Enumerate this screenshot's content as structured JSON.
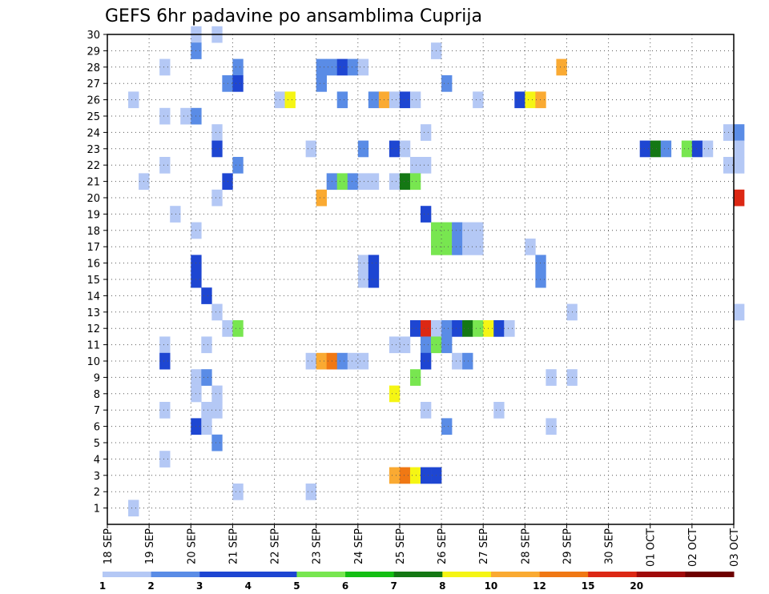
{
  "chart_data": {
    "type": "heatmap",
    "title": "GEFS 6hr padavine po ansamblima Cuprija",
    "x_tick_labels": [
      "18 SEP",
      "19 SEP",
      "20 SEP",
      "21 SEP",
      "22 SEP",
      "23 SEP",
      "24 SEP",
      "25 SEP",
      "26 SEP",
      "27 SEP",
      "28 SEP",
      "29 SEP",
      "30 SEP",
      "01 OCT",
      "02 OCT",
      "03 OCT"
    ],
    "x_range": [
      "18 SEP 00Z",
      "03 OCT 00Z"
    ],
    "x_step": "6hr",
    "y_tick_labels": [
      "1",
      "2",
      "3",
      "4",
      "5",
      "6",
      "7",
      "8",
      "9",
      "10",
      "11",
      "12",
      "13",
      "14",
      "15",
      "16",
      "17",
      "18",
      "19",
      "20",
      "21",
      "22",
      "23",
      "24",
      "25",
      "26",
      "27",
      "28",
      "29",
      "30"
    ],
    "y_range": [
      1,
      30
    ],
    "grid": true,
    "colorbar": {
      "labels": [
        "1",
        "2",
        "3",
        "4",
        "5",
        "6",
        "7",
        "8",
        "10",
        "12",
        "15",
        "20"
      ],
      "colors": [
        "#b4c8f5",
        "#5a8ce6",
        "#1e46d2",
        "#1e46d2",
        "#78e650",
        "#14be14",
        "#147814",
        "#f5f514",
        "#faaa32",
        "#f07814",
        "#dc2814",
        "#a00a0a",
        "#6e0000"
      ]
    },
    "cells": [
      {
        "member": 30,
        "t": "20 SEP 00Z",
        "v": 1.5
      },
      {
        "member": 30,
        "t": "20 SEP 12Z",
        "v": 1.5
      },
      {
        "member": 29,
        "t": "20 SEP 00Z",
        "v": 2.5
      },
      {
        "member": 29,
        "t": "25 SEP 18Z",
        "v": 1.5
      },
      {
        "member": 28,
        "t": "19 SEP 06Z",
        "v": 1.5
      },
      {
        "member": 28,
        "t": "21 SEP 00Z",
        "v": 2.5
      },
      {
        "member": 28,
        "t": "23 SEP 00Z",
        "v": 2.5
      },
      {
        "member": 28,
        "t": "23 SEP 06Z",
        "v": 2.5
      },
      {
        "member": 28,
        "t": "23 SEP 12Z",
        "v": 3.5
      },
      {
        "member": 28,
        "t": "23 SEP 18Z",
        "v": 2.5
      },
      {
        "member": 28,
        "t": "24 SEP 00Z",
        "v": 1.5
      },
      {
        "member": 28,
        "t": "28 SEP 18Z",
        "v": 11
      },
      {
        "member": 27,
        "t": "20 SEP 18Z",
        "v": 2.5
      },
      {
        "member": 27,
        "t": "21 SEP 00Z",
        "v": 3.5
      },
      {
        "member": 27,
        "t": "23 SEP 00Z",
        "v": 2.5
      },
      {
        "member": 27,
        "t": "26 SEP 00Z",
        "v": 2.5
      },
      {
        "member": 26,
        "t": "18 SEP 12Z",
        "v": 1.5
      },
      {
        "member": 26,
        "t": "22 SEP 00Z",
        "v": 1.5
      },
      {
        "member": 26,
        "t": "22 SEP 06Z",
        "v": 9
      },
      {
        "member": 26,
        "t": "23 SEP 12Z",
        "v": 2.5
      },
      {
        "member": 26,
        "t": "24 SEP 06Z",
        "v": 2.5
      },
      {
        "member": 26,
        "t": "24 SEP 12Z",
        "v": 11
      },
      {
        "member": 26,
        "t": "24 SEP 18Z",
        "v": 1.5
      },
      {
        "member": 26,
        "t": "25 SEP 00Z",
        "v": 4.5
      },
      {
        "member": 26,
        "t": "25 SEP 06Z",
        "v": 1.5
      },
      {
        "member": 26,
        "t": "26 SEP 18Z",
        "v": 1.5
      },
      {
        "member": 26,
        "t": "27 SEP 18Z",
        "v": 4.5
      },
      {
        "member": 26,
        "t": "28 SEP 00Z",
        "v": 9
      },
      {
        "member": 26,
        "t": "28 SEP 06Z",
        "v": 11
      },
      {
        "member": 25,
        "t": "19 SEP 06Z",
        "v": 1.5
      },
      {
        "member": 25,
        "t": "19 SEP 18Z",
        "v": 1.5
      },
      {
        "member": 25,
        "t": "20 SEP 00Z",
        "v": 2.5
      },
      {
        "member": 24,
        "t": "20 SEP 12Z",
        "v": 1.5
      },
      {
        "member": 24,
        "t": "25 SEP 12Z",
        "v": 1.5
      },
      {
        "member": 24,
        "t": "02 OCT 18Z",
        "v": 1.5
      },
      {
        "member": 24,
        "t": "03 OCT 00Z",
        "v": 2.5
      },
      {
        "member": 23,
        "t": "20 SEP 12Z",
        "v": 3.5
      },
      {
        "member": 23,
        "t": "22 SEP 18Z",
        "v": 1.5
      },
      {
        "member": 23,
        "t": "24 SEP 00Z",
        "v": 2.5
      },
      {
        "member": 23,
        "t": "24 SEP 18Z",
        "v": 4.5
      },
      {
        "member": 23,
        "t": "25 SEP 00Z",
        "v": 1.5
      },
      {
        "member": 23,
        "t": "30 SEP 18Z",
        "v": 3.5
      },
      {
        "member": 23,
        "t": "01 OCT 00Z",
        "v": 7.5
      },
      {
        "member": 23,
        "t": "01 OCT 06Z",
        "v": 2.5
      },
      {
        "member": 23,
        "t": "01 OCT 18Z",
        "v": 5.5
      },
      {
        "member": 23,
        "t": "02 OCT 00Z",
        "v": 3.5
      },
      {
        "member": 23,
        "t": "02 OCT 06Z",
        "v": 1.5
      },
      {
        "member": 23,
        "t": "03 OCT 00Z",
        "v": 1.5
      },
      {
        "member": 22,
        "t": "19 SEP 06Z",
        "v": 1.5
      },
      {
        "member": 22,
        "t": "21 SEP 00Z",
        "v": 2.5
      },
      {
        "member": 22,
        "t": "25 SEP 06Z",
        "v": 1.5
      },
      {
        "member": 22,
        "t": "25 SEP 12Z",
        "v": 1.5
      },
      {
        "member": 22,
        "t": "02 OCT 18Z",
        "v": 1.5
      },
      {
        "member": 22,
        "t": "03 OCT 00Z",
        "v": 1.5
      },
      {
        "member": 21,
        "t": "18 SEP 18Z",
        "v": 1.5
      },
      {
        "member": 21,
        "t": "20 SEP 18Z",
        "v": 3.5
      },
      {
        "member": 21,
        "t": "23 SEP 06Z",
        "v": 2.5
      },
      {
        "member": 21,
        "t": "23 SEP 12Z",
        "v": 5.5
      },
      {
        "member": 21,
        "t": "23 SEP 18Z",
        "v": 2.5
      },
      {
        "member": 21,
        "t": "24 SEP 00Z",
        "v": 1.5
      },
      {
        "member": 21,
        "t": "24 SEP 06Z",
        "v": 1.5
      },
      {
        "member": 21,
        "t": "24 SEP 18Z",
        "v": 1.5
      },
      {
        "member": 21,
        "t": "25 SEP 00Z",
        "v": 7.5
      },
      {
        "member": 21,
        "t": "25 SEP 06Z",
        "v": 5.5
      },
      {
        "member": 20,
        "t": "20 SEP 12Z",
        "v": 1.5
      },
      {
        "member": 20,
        "t": "23 SEP 00Z",
        "v": 11
      },
      {
        "member": 20,
        "t": "03 OCT 00Z",
        "v": 17
      },
      {
        "member": 19,
        "t": "19 SEP 12Z",
        "v": 1.5
      },
      {
        "member": 19,
        "t": "25 SEP 12Z",
        "v": 3.5
      },
      {
        "member": 18,
        "t": "20 SEP 00Z",
        "v": 1.5
      },
      {
        "member": 18,
        "t": "25 SEP 18Z",
        "v": 5.5
      },
      {
        "member": 18,
        "t": "26 SEP 00Z",
        "v": 5.5
      },
      {
        "member": 18,
        "t": "26 SEP 06Z",
        "v": 2.5
      },
      {
        "member": 18,
        "t": "26 SEP 12Z",
        "v": 1.5
      },
      {
        "member": 18,
        "t": "26 SEP 18Z",
        "v": 1.5
      },
      {
        "member": 17,
        "t": "25 SEP 18Z",
        "v": 5.5
      },
      {
        "member": 17,
        "t": "26 SEP 00Z",
        "v": 5.5
      },
      {
        "member": 17,
        "t": "26 SEP 06Z",
        "v": 2.5
      },
      {
        "member": 17,
        "t": "26 SEP 12Z",
        "v": 1.5
      },
      {
        "member": 17,
        "t": "26 SEP 18Z",
        "v": 1.5
      },
      {
        "member": 17,
        "t": "28 SEP 00Z",
        "v": 1.5
      },
      {
        "member": 16,
        "t": "20 SEP 00Z",
        "v": 3.5
      },
      {
        "member": 16,
        "t": "24 SEP 00Z",
        "v": 1.5
      },
      {
        "member": 16,
        "t": "24 SEP 06Z",
        "v": 3.5
      },
      {
        "member": 16,
        "t": "28 SEP 06Z",
        "v": 2.5
      },
      {
        "member": 15,
        "t": "20 SEP 00Z",
        "v": 3.5
      },
      {
        "member": 15,
        "t": "24 SEP 00Z",
        "v": 1.5
      },
      {
        "member": 15,
        "t": "24 SEP 06Z",
        "v": 3.5
      },
      {
        "member": 15,
        "t": "28 SEP 06Z",
        "v": 2.5
      },
      {
        "member": 14,
        "t": "20 SEP 06Z",
        "v": 3.5
      },
      {
        "member": 13,
        "t": "20 SEP 12Z",
        "v": 1.5
      },
      {
        "member": 13,
        "t": "29 SEP 00Z",
        "v": 1.5
      },
      {
        "member": 13,
        "t": "03 OCT 00Z",
        "v": 1.5
      },
      {
        "member": 12,
        "t": "20 SEP 18Z",
        "v": 1.5
      },
      {
        "member": 12,
        "t": "21 SEP 00Z",
        "v": 5.5
      },
      {
        "member": 12,
        "t": "25 SEP 06Z",
        "v": 3.5
      },
      {
        "member": 12,
        "t": "25 SEP 12Z",
        "v": 17
      },
      {
        "member": 12,
        "t": "25 SEP 18Z",
        "v": 1.5
      },
      {
        "member": 12,
        "t": "26 SEP 00Z",
        "v": 2.5
      },
      {
        "member": 12,
        "t": "26 SEP 06Z",
        "v": 3.5
      },
      {
        "member": 12,
        "t": "26 SEP 12Z",
        "v": 7.5
      },
      {
        "member": 12,
        "t": "26 SEP 18Z",
        "v": 5.5
      },
      {
        "member": 12,
        "t": "27 SEP 00Z",
        "v": 9
      },
      {
        "member": 12,
        "t": "27 SEP 06Z",
        "v": 4.5
      },
      {
        "member": 12,
        "t": "27 SEP 12Z",
        "v": 1.5
      },
      {
        "member": 11,
        "t": "19 SEP 06Z",
        "v": 1.5
      },
      {
        "member": 11,
        "t": "20 SEP 06Z",
        "v": 1.5
      },
      {
        "member": 11,
        "t": "24 SEP 18Z",
        "v": 1.5
      },
      {
        "member": 11,
        "t": "25 SEP 00Z",
        "v": 1.5
      },
      {
        "member": 11,
        "t": "25 SEP 12Z",
        "v": 2.5
      },
      {
        "member": 11,
        "t": "25 SEP 18Z",
        "v": 5.5
      },
      {
        "member": 11,
        "t": "26 SEP 00Z",
        "v": 2.5
      },
      {
        "member": 10,
        "t": "19 SEP 06Z",
        "v": 4.5
      },
      {
        "member": 10,
        "t": "22 SEP 18Z",
        "v": 1.5
      },
      {
        "member": 10,
        "t": "23 SEP 00Z",
        "v": 11
      },
      {
        "member": 10,
        "t": "23 SEP 06Z",
        "v": 13
      },
      {
        "member": 10,
        "t": "23 SEP 12Z",
        "v": 2.5
      },
      {
        "member": 10,
        "t": "23 SEP 18Z",
        "v": 1.5
      },
      {
        "member": 10,
        "t": "24 SEP 00Z",
        "v": 1.5
      },
      {
        "member": 10,
        "t": "25 SEP 12Z",
        "v": 4.5
      },
      {
        "member": 10,
        "t": "26 SEP 06Z",
        "v": 1.5
      },
      {
        "member": 10,
        "t": "26 SEP 12Z",
        "v": 2.5
      },
      {
        "member": 9,
        "t": "20 SEP 00Z",
        "v": 1.5
      },
      {
        "member": 9,
        "t": "20 SEP 06Z",
        "v": 2.5
      },
      {
        "member": 9,
        "t": "25 SEP 06Z",
        "v": 5.5
      },
      {
        "member": 9,
        "t": "28 SEP 12Z",
        "v": 1.5
      },
      {
        "member": 9,
        "t": "29 SEP 00Z",
        "v": 1.5
      },
      {
        "member": 8,
        "t": "20 SEP 00Z",
        "v": 1.5
      },
      {
        "member": 8,
        "t": "20 SEP 12Z",
        "v": 1.5
      },
      {
        "member": 8,
        "t": "24 SEP 18Z",
        "v": 9
      },
      {
        "member": 7,
        "t": "19 SEP 06Z",
        "v": 1.5
      },
      {
        "member": 7,
        "t": "20 SEP 06Z",
        "v": 1.5
      },
      {
        "member": 7,
        "t": "20 SEP 12Z",
        "v": 1.5
      },
      {
        "member": 7,
        "t": "25 SEP 12Z",
        "v": 1.5
      },
      {
        "member": 7,
        "t": "27 SEP 06Z",
        "v": 1.5
      },
      {
        "member": 6,
        "t": "20 SEP 00Z",
        "v": 3.5
      },
      {
        "member": 6,
        "t": "20 SEP 06Z",
        "v": 1.5
      },
      {
        "member": 6,
        "t": "26 SEP 00Z",
        "v": 2.5
      },
      {
        "member": 6,
        "t": "28 SEP 12Z",
        "v": 1.5
      },
      {
        "member": 5,
        "t": "20 SEP 12Z",
        "v": 2.5
      },
      {
        "member": 4,
        "t": "19 SEP 06Z",
        "v": 1.5
      },
      {
        "member": 3,
        "t": "24 SEP 18Z",
        "v": 11
      },
      {
        "member": 3,
        "t": "25 SEP 00Z",
        "v": 13
      },
      {
        "member": 3,
        "t": "25 SEP 06Z",
        "v": 9
      },
      {
        "member": 3,
        "t": "25 SEP 12Z",
        "v": 4.5
      },
      {
        "member": 3,
        "t": "25 SEP 18Z",
        "v": 3.5
      },
      {
        "member": 2,
        "t": "21 SEP 00Z",
        "v": 1.5
      },
      {
        "member": 2,
        "t": "22 SEP 18Z",
        "v": 1.5
      },
      {
        "member": 1,
        "t": "18 SEP 12Z",
        "v": 1.5
      }
    ]
  }
}
